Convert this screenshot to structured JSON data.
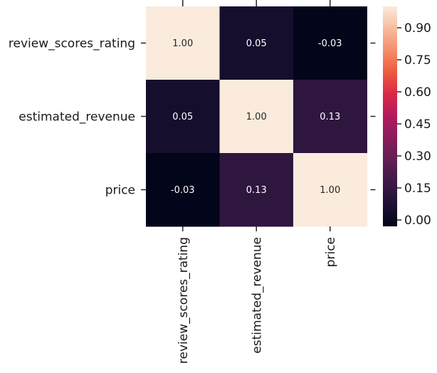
{
  "chart_data": {
    "type": "heatmap",
    "title": "",
    "row_labels": [
      "review_scores_rating",
      "estimated_revenue",
      "price"
    ],
    "col_labels": [
      "review_scores_rating",
      "estimated_revenue",
      "price"
    ],
    "values": [
      [
        1.0,
        0.05,
        -0.03
      ],
      [
        0.05,
        1.0,
        0.13
      ],
      [
        -0.03,
        0.13,
        1.0
      ]
    ],
    "cell_labels": [
      [
        "1.00",
        "0.05",
        "-0.03"
      ],
      [
        "0.05",
        "1.00",
        "0.13"
      ],
      [
        "-0.03",
        "0.13",
        "1.00"
      ]
    ],
    "colormap": "rocket",
    "colorbar": {
      "range": [
        -0.03,
        1.0
      ],
      "ticks": [
        0.0,
        0.15,
        0.3,
        0.45,
        0.6,
        0.75,
        0.9
      ],
      "tick_labels": [
        "0.00",
        "0.15",
        "0.30",
        "0.45",
        "0.60",
        "0.75",
        "0.90"
      ]
    },
    "grid": false
  }
}
